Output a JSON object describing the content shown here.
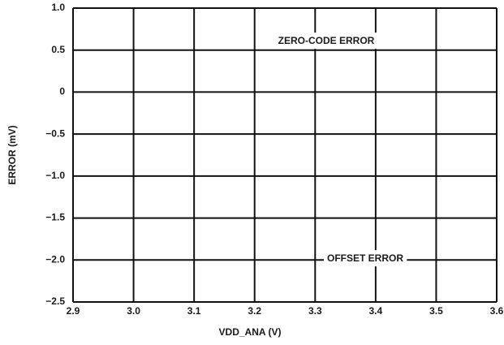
{
  "chart_data": {
    "type": "line",
    "xlabel": "VDD_ANA (V)",
    "ylabel": "ERROR (mV)",
    "xlim": [
      2.9,
      3.6
    ],
    "xticks": [
      2.9,
      {
        "value": 3.0,
        "label": "3.0"
      },
      3.1,
      3.2,
      3.3,
      3.4,
      3.5,
      3.6
    ],
    "ylim": [
      -2.5,
      1.0
    ],
    "yticks": [
      {
        "value": -2.5,
        "label": "−2.5"
      },
      {
        "value": -2.0,
        "label": "−2.0"
      },
      {
        "value": -1.5,
        "label": "−1.5"
      },
      {
        "value": -1.0,
        "label": "−1.0"
      },
      {
        "value": -0.5,
        "label": "−0.5"
      },
      0,
      0.5,
      {
        "value": 1.0,
        "label": "1.0"
      }
    ],
    "grid": true,
    "annotations": [
      {
        "text": "ZERO-CODE ERROR"
      },
      {
        "text": "OFFSET ERROR"
      }
    ]
  }
}
